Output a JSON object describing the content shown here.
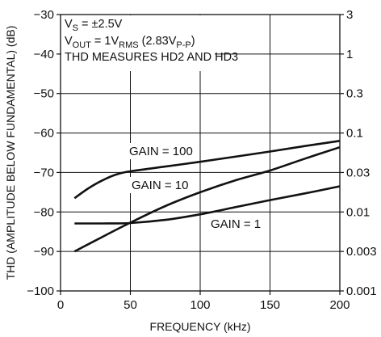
{
  "chart_data": {
    "type": "line",
    "xlabel": "FREQUENCY (kHz)",
    "ylabel": "THD (AMPLITUDE BELOW FUNDAMENTAL) (dB)",
    "xlim": [
      0,
      200
    ],
    "ylim": [
      -100,
      -30
    ],
    "x_ticks": [
      "0",
      "50",
      "100",
      "150",
      "200"
    ],
    "y_ticks": [
      "−30",
      "−40",
      "−50",
      "−60",
      "−70",
      "−80",
      "−90",
      "−100"
    ],
    "y2_ticks": [
      "3",
      "1",
      "0.3",
      "0.1",
      "0.03",
      "0.01",
      "0.003",
      "0.001"
    ],
    "grid": true,
    "notes": [
      "V_S = ±2.5V",
      "V_OUT = 1V_RMS (2.83V_P-P)",
      "THD MEASURES HD2 AND HD3"
    ],
    "series": [
      {
        "name": "GAIN = 100",
        "x": [
          10,
          20,
          30,
          40,
          50,
          75,
          100,
          125,
          150,
          175,
          200
        ],
        "y": [
          -76.5,
          -74,
          -72,
          -70.5,
          -69.7,
          -68.5,
          -67.3,
          -66,
          -64.7,
          -63.3,
          -62
        ]
      },
      {
        "name": "GAIN = 10",
        "x": [
          10,
          30,
          50,
          75,
          100,
          125,
          150,
          175,
          200
        ],
        "y": [
          -90,
          -86.3,
          -82.7,
          -78.5,
          -75,
          -72,
          -69.5,
          -66.5,
          -63.6
        ]
      },
      {
        "name": "GAIN = 1",
        "x": [
          10,
          30,
          50,
          75,
          100,
          125,
          150,
          175,
          200
        ],
        "y": [
          -82.9,
          -82.9,
          -82.8,
          -82,
          -80.6,
          -78.8,
          -77,
          -75.3,
          -73.5
        ]
      }
    ]
  },
  "labels": {
    "vs_prefix": "V",
    "vs_sub": "S",
    "vs_rest": " = ±2.5V",
    "vout_prefix": "V",
    "vout_sub": "OUT",
    "vout_mid": " = 1V",
    "vout_sub2": "RMS",
    "vout_mid2": " (2.83V",
    "vout_sub3": "P-P",
    "vout_end": ")",
    "thd_note": "THD MEASURES HD2 AND HD3"
  }
}
